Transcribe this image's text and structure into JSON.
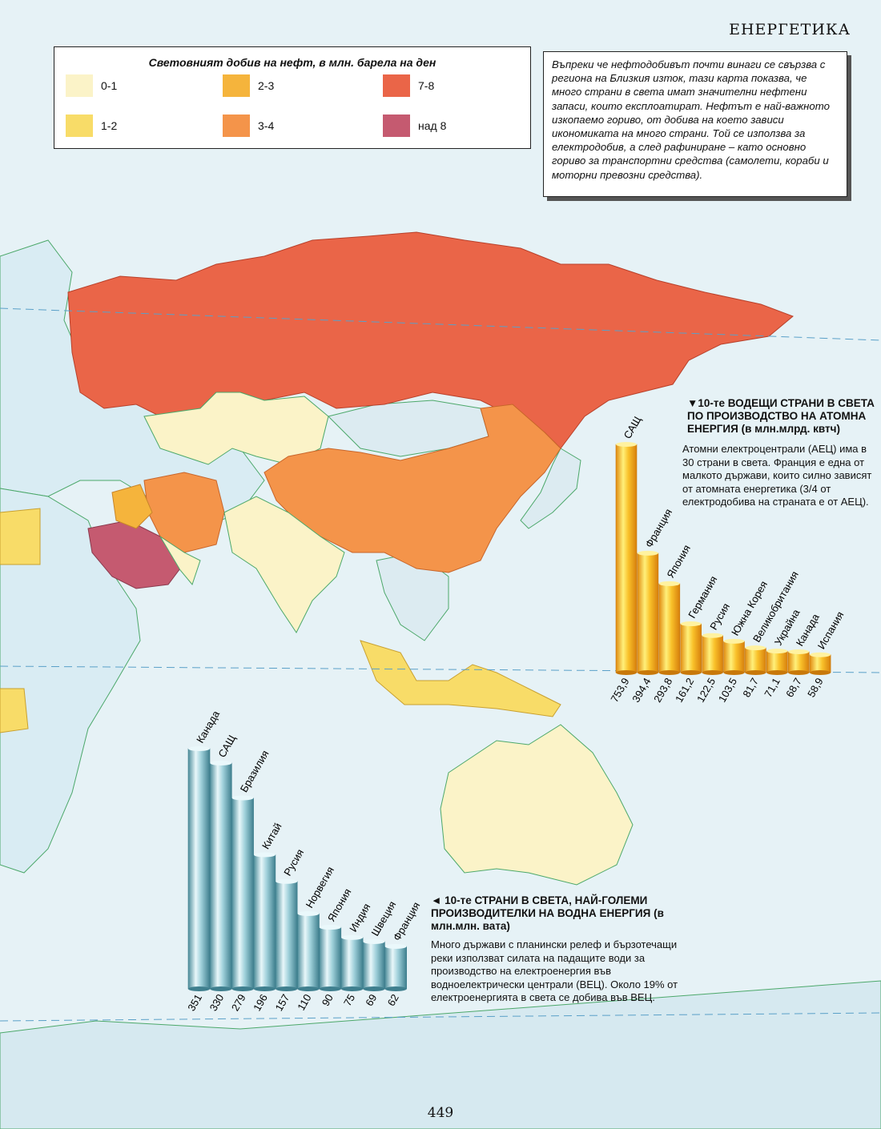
{
  "header": {
    "section": "ЕНЕРГЕТИКА"
  },
  "legend": {
    "title": "Световният добив на нефт, в млн. барела на ден",
    "items": [
      {
        "label": "0-1",
        "color": "#fbf3c8"
      },
      {
        "label": "1-2",
        "color": "#f8dc68"
      },
      {
        "label": "2-3",
        "color": "#f5b43c"
      },
      {
        "label": "3-4",
        "color": "#f4944a"
      },
      {
        "label": "7-8",
        "color": "#ea6548"
      },
      {
        "label": "над 8",
        "color": "#c55a70"
      }
    ]
  },
  "intro": {
    "text": "Въпреки че нефтодобивът почти винаги се свързва с региона на Близкия изток, тази карта показва, че много страни в света имат значителни нефтени запаси, които експлоатират. Нефтът е най-важното изкопаемо гориво, от добива на което зависи икономиката на много страни. Той се използва за електродобив, а след рафиниране – като основно гориво за транспортни средства (самолети, кораби и моторни превозни средства)."
  },
  "nuclear": {
    "title": "▼10-те ВОДЕЩИ СТРАНИ В СВЕТА ПО ПРОИЗВОДСТВО НА АТОМНА ЕНЕРГИЯ (в млн.млрд. квтч)",
    "text": "Атомни електроцентрали (АЕЦ) има в 30 страни в света. Франция е една от малкото държави, които силно зависят от атомната енергетика (3/4 от електродобива на страната е от АЕЦ)."
  },
  "hydro": {
    "title": "◄ 10-те СТРАНИ В СВЕТА, НАЙ-ГОЛЕМИ ПРОИЗВОДИТЕЛКИ НА ВОДНА ЕНЕРГИЯ (в млн.млн. вата)",
    "text": "Много държави с планински релеф и бързотечащи реки използват силата на падащите води за производство на електроенергия във водноелектрически централи (ВЕЦ). Около 19% от електроенергията в света се добива във ВЕЦ."
  },
  "chart_data": [
    {
      "type": "bar",
      "categories": [
        "САЩ",
        "Франция",
        "Япония",
        "Германия",
        "Русия",
        "Южна Корея",
        "Великобритания",
        "Украйна",
        "Канада",
        "Испания"
      ],
      "value_labels": [
        "753,9",
        "394,4",
        "293,8",
        "161,2",
        "122,5",
        "103,5",
        "81,7",
        "71,1",
        "68,7",
        "58,9"
      ],
      "values": [
        753.9,
        394.4,
        293.8,
        161.2,
        122.5,
        103.5,
        81.7,
        71.1,
        68.7,
        58.9
      ],
      "color": "#f4b21a"
    },
    {
      "type": "bar",
      "categories": [
        "Канада",
        "САЩ",
        "Бразилия",
        "Китай",
        "Русия",
        "Норвегия",
        "Япония",
        "Индия",
        "Швеция",
        "Франция"
      ],
      "value_labels": [
        "351",
        "330",
        "279",
        "196",
        "157",
        "110",
        "90",
        "75",
        "69",
        "62"
      ],
      "values": [
        351,
        330,
        279,
        196,
        157,
        110,
        90,
        75,
        69,
        62
      ],
      "color": "#8cc4cf"
    }
  ],
  "page": {
    "number": "449"
  }
}
